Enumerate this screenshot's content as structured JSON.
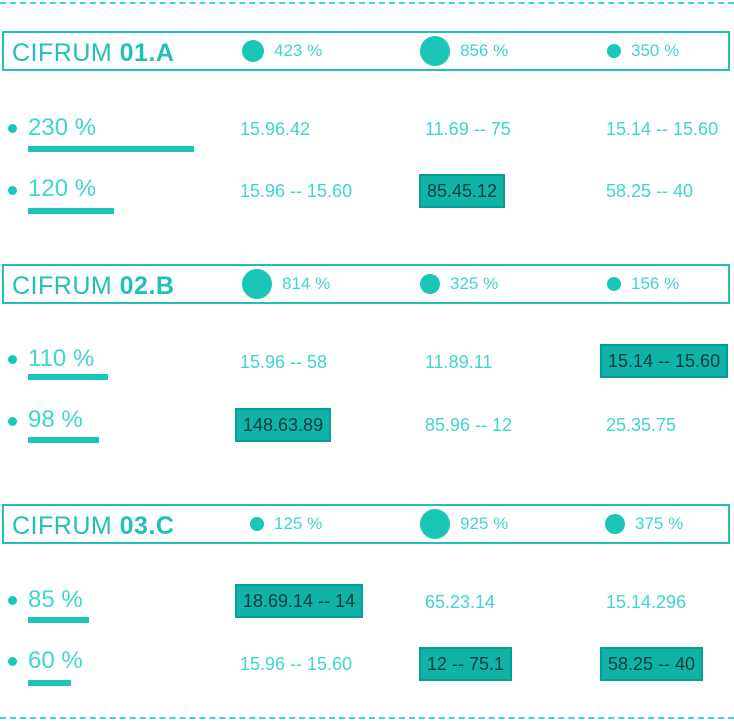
{
  "colors": {
    "accent": "#1fc2b5",
    "text": "#3ed6cd",
    "highlight": "#0fb3a8",
    "highlight_text": "#0a3b39"
  },
  "sections": [
    {
      "prefix": "CIFRUM ",
      "code": "01.A",
      "stats": [
        "423 %",
        "856 %",
        "350 %"
      ],
      "rows": [
        {
          "label": "230 %",
          "bar_fraction": 1.0,
          "cells": [
            "15.96.42",
            "11.69 -- 75",
            "15.14 -- 15.60"
          ],
          "highlight": [
            false,
            false,
            false
          ]
        },
        {
          "label": "120 %",
          "bar_fraction": 0.52,
          "cells": [
            "15.96 -- 15.60",
            "85.45.12",
            "58.25 -- 40"
          ],
          "highlight": [
            false,
            true,
            false
          ]
        }
      ]
    },
    {
      "prefix": "CIFRUM ",
      "code": "02.B",
      "stats": [
        "814 %",
        "325 %",
        "156 %"
      ],
      "rows": [
        {
          "label": "110 %",
          "bar_fraction": 0.48,
          "cells": [
            "15.96 -- 58",
            "11.89.11",
            "15.14 -- 15.60"
          ],
          "highlight": [
            false,
            false,
            true
          ]
        },
        {
          "label": "98 %",
          "bar_fraction": 0.43,
          "cells": [
            "148.63.89",
            "85.96 -- 12",
            "25.35.75"
          ],
          "highlight": [
            true,
            false,
            false
          ]
        }
      ]
    },
    {
      "prefix": "CIFRUM ",
      "code": "03.C",
      "stats": [
        "125 %",
        "925 %",
        "375 %"
      ],
      "rows": [
        {
          "label": "85 %",
          "bar_fraction": 0.37,
          "cells": [
            "18.69.14 -- 14",
            "65.23.14",
            "15.14.296"
          ],
          "highlight": [
            true,
            false,
            false
          ]
        },
        {
          "label": "60 %",
          "bar_fraction": 0.26,
          "cells": [
            "15.96 -- 15.60",
            "12 -- 75.1",
            "58.25 -- 40"
          ],
          "highlight": [
            false,
            true,
            true
          ]
        }
      ]
    }
  ]
}
